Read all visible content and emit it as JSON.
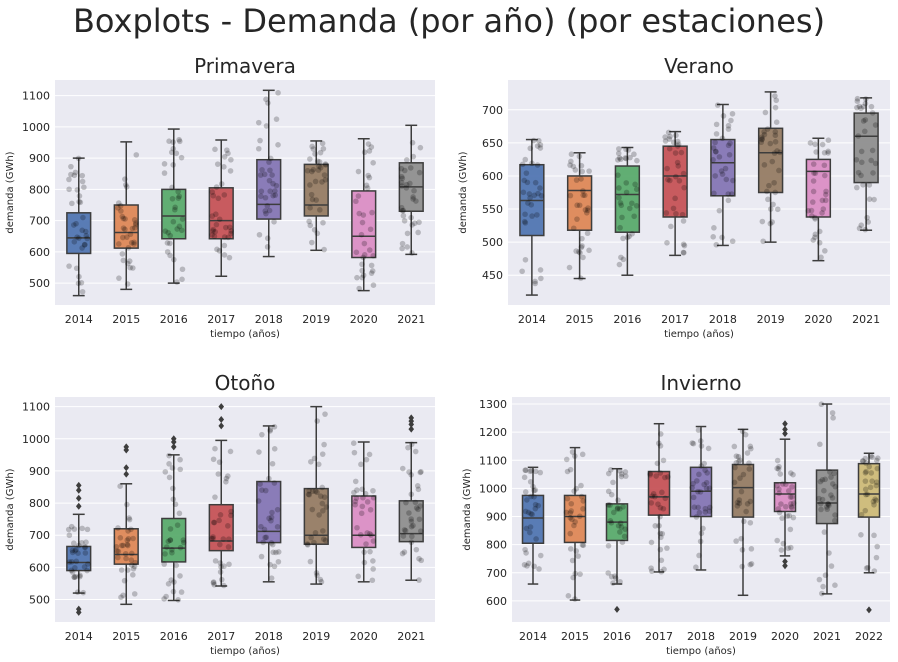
{
  "suptitle": "Boxplots - Demanda (por año) (por estaciones)",
  "chart_data": [
    {
      "type": "box",
      "title": "Primavera",
      "xlabel": "tiempo (años)",
      "ylabel": "demanda (GWh)",
      "categories": [
        "2014",
        "2015",
        "2016",
        "2017",
        "2018",
        "2019",
        "2020",
        "2021"
      ],
      "ylim": [
        430,
        1150
      ],
      "yticks": [
        500,
        600,
        700,
        800,
        900,
        1000,
        1100
      ],
      "boxes": [
        {
          "min": 460,
          "q1": 595,
          "median": 645,
          "q3": 725,
          "max": 900,
          "outliers": []
        },
        {
          "min": 480,
          "q1": 612,
          "median": 662,
          "q3": 750,
          "max": 952,
          "outliers": []
        },
        {
          "min": 500,
          "q1": 642,
          "median": 715,
          "q3": 800,
          "max": 993,
          "outliers": []
        },
        {
          "min": 522,
          "q1": 642,
          "median": 700,
          "q3": 805,
          "max": 958,
          "outliers": []
        },
        {
          "min": 585,
          "q1": 705,
          "median": 752,
          "q3": 895,
          "max": 1117,
          "outliers": []
        },
        {
          "min": 605,
          "q1": 715,
          "median": 750,
          "q3": 880,
          "max": 955,
          "outliers": []
        },
        {
          "min": 476,
          "q1": 582,
          "median": 650,
          "q3": 795,
          "max": 962,
          "outliers": []
        },
        {
          "min": 592,
          "q1": 730,
          "median": 808,
          "q3": 885,
          "max": 1005,
          "outliers": []
        }
      ],
      "colors": [
        "#4c72b0",
        "#dd8452",
        "#55a868",
        "#c44e52",
        "#8172b3",
        "#937860",
        "#da8bc3",
        "#8c8c8c"
      ]
    },
    {
      "type": "box",
      "title": "Verano",
      "xlabel": "tiempo (años)",
      "ylabel": "demanda (GWh)",
      "categories": [
        "2014",
        "2015",
        "2016",
        "2017",
        "2018",
        "2019",
        "2020",
        "2021"
      ],
      "ylim": [
        405,
        745
      ],
      "yticks": [
        450,
        500,
        550,
        600,
        650,
        700
      ],
      "boxes": [
        {
          "min": 420,
          "q1": 510,
          "median": 563,
          "q3": 617,
          "max": 655,
          "outliers": []
        },
        {
          "min": 445,
          "q1": 518,
          "median": 578,
          "q3": 600,
          "max": 635,
          "outliers": []
        },
        {
          "min": 450,
          "q1": 515,
          "median": 572,
          "q3": 615,
          "max": 643,
          "outliers": []
        },
        {
          "min": 480,
          "q1": 538,
          "median": 600,
          "q3": 645,
          "max": 667,
          "outliers": []
        },
        {
          "min": 495,
          "q1": 570,
          "median": 620,
          "q3": 655,
          "max": 708,
          "outliers": []
        },
        {
          "min": 500,
          "q1": 575,
          "median": 635,
          "q3": 672,
          "max": 727,
          "outliers": []
        },
        {
          "min": 472,
          "q1": 538,
          "median": 607,
          "q3": 625,
          "max": 657,
          "outliers": []
        },
        {
          "min": 518,
          "q1": 590,
          "median": 660,
          "q3": 695,
          "max": 718,
          "outliers": []
        }
      ],
      "colors": [
        "#4c72b0",
        "#dd8452",
        "#55a868",
        "#c44e52",
        "#8172b3",
        "#937860",
        "#da8bc3",
        "#8c8c8c"
      ]
    },
    {
      "type": "box",
      "title": "Otoño",
      "xlabel": "tiempo (años)",
      "ylabel": "demanda (GWh)",
      "categories": [
        "2014",
        "2015",
        "2016",
        "2017",
        "2018",
        "2019",
        "2020",
        "2021"
      ],
      "ylim": [
        430,
        1130
      ],
      "yticks": [
        500,
        600,
        700,
        800,
        900,
        1000,
        1100
      ],
      "boxes": [
        {
          "min": 520,
          "q1": 590,
          "median": 615,
          "q3": 665,
          "max": 765,
          "outliers": [
            790,
            815,
            840,
            855,
            470,
            460
          ]
        },
        {
          "min": 485,
          "q1": 610,
          "median": 640,
          "q3": 720,
          "max": 860,
          "outliers": [
            890,
            910,
            965,
            975
          ]
        },
        {
          "min": 497,
          "q1": 617,
          "median": 660,
          "q3": 752,
          "max": 950,
          "outliers": [
            975,
            990,
            1000
          ]
        },
        {
          "min": 542,
          "q1": 652,
          "median": 682,
          "q3": 795,
          "max": 995,
          "outliers": [
            1040,
            1060,
            1100
          ]
        },
        {
          "min": 555,
          "q1": 677,
          "median": 712,
          "q3": 867,
          "max": 1040,
          "outliers": []
        },
        {
          "min": 548,
          "q1": 672,
          "median": 700,
          "q3": 845,
          "max": 1100,
          "outliers": []
        },
        {
          "min": 555,
          "q1": 662,
          "median": 700,
          "q3": 822,
          "max": 990,
          "outliers": []
        },
        {
          "min": 560,
          "q1": 680,
          "median": 705,
          "q3": 807,
          "max": 988,
          "outliers": [
            1030,
            1045,
            1055,
            1065
          ]
        }
      ],
      "colors": [
        "#4c72b0",
        "#dd8452",
        "#55a868",
        "#c44e52",
        "#8172b3",
        "#937860",
        "#da8bc3",
        "#8c8c8c"
      ]
    },
    {
      "type": "box",
      "title": "Invierno",
      "xlabel": "tiempo (años)",
      "ylabel": "demanda (GWh)",
      "categories": [
        "2014",
        "2015",
        "2016",
        "2017",
        "2018",
        "2019",
        "2020",
        "2021",
        "2022"
      ],
      "ylim": [
        525,
        1325
      ],
      "yticks": [
        600,
        700,
        800,
        900,
        1000,
        1100,
        1200,
        1300
      ],
      "boxes": [
        {
          "min": 660,
          "q1": 805,
          "median": 895,
          "q3": 975,
          "max": 1075,
          "outliers": []
        },
        {
          "min": 603,
          "q1": 808,
          "median": 900,
          "q3": 975,
          "max": 1145,
          "outliers": []
        },
        {
          "min": 660,
          "q1": 815,
          "median": 880,
          "q3": 945,
          "max": 1070,
          "outliers": [
            570
          ]
        },
        {
          "min": 703,
          "q1": 905,
          "median": 970,
          "q3": 1060,
          "max": 1230,
          "outliers": []
        },
        {
          "min": 710,
          "q1": 900,
          "median": 990,
          "q3": 1075,
          "max": 1220,
          "outliers": []
        },
        {
          "min": 620,
          "q1": 898,
          "median": 1003,
          "q3": 1085,
          "max": 1210,
          "outliers": []
        },
        {
          "min": 760,
          "q1": 918,
          "median": 980,
          "q3": 1020,
          "max": 1175,
          "outliers": [
            725,
            740,
            1195,
            1210,
            1230
          ]
        },
        {
          "min": 625,
          "q1": 875,
          "median": 948,
          "q3": 1065,
          "max": 1300,
          "outliers": []
        },
        {
          "min": 700,
          "q1": 898,
          "median": 980,
          "q3": 1088,
          "max": 1125,
          "outliers": [
            568
          ]
        }
      ],
      "colors": [
        "#4c72b0",
        "#dd8452",
        "#55a868",
        "#c44e52",
        "#8172b3",
        "#937860",
        "#da8bc3",
        "#8c8c8c",
        "#ccb974"
      ]
    }
  ]
}
